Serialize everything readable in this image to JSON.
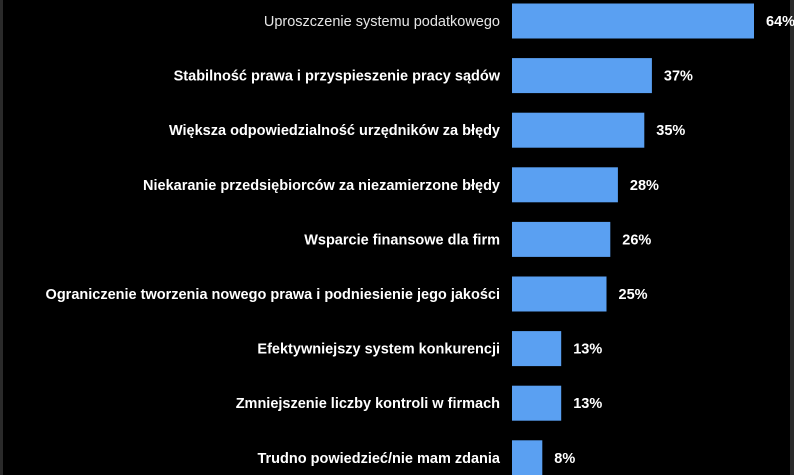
{
  "colors": {
    "background": "#000000",
    "bar": "#5aa0f2",
    "text": "#ffffff",
    "first_label_text": "#e6e6e6"
  },
  "chart_data": {
    "type": "bar",
    "orientation": "horizontal",
    "categories": [
      "Uproszczenie systemu podatkowego",
      "Stabilność prawa i przyspieszenie pracy sądów",
      "Większa odpowiedzialność urzędników za błędy",
      "Niekaranie przedsiębiorców za niezamierzone błędy",
      "Wsparcie finansowe dla firm",
      "Ograniczenie tworzenia nowego prawa i podniesienie jego jakości",
      "Efektywniejszy system konkurencji",
      "Zmniejszenie liczby kontroli w firmach",
      "Trudno powiedzieć/nie mam zdania"
    ],
    "values": [
      64,
      37,
      35,
      28,
      26,
      25,
      13,
      13,
      8
    ],
    "value_labels": [
      "64%",
      "37%",
      "35%",
      "28%",
      "26%",
      "25%",
      "13%",
      "13%",
      "8%"
    ],
    "unit": "%",
    "xlim": [
      0,
      64
    ],
    "grid": false,
    "legend": "none"
  }
}
